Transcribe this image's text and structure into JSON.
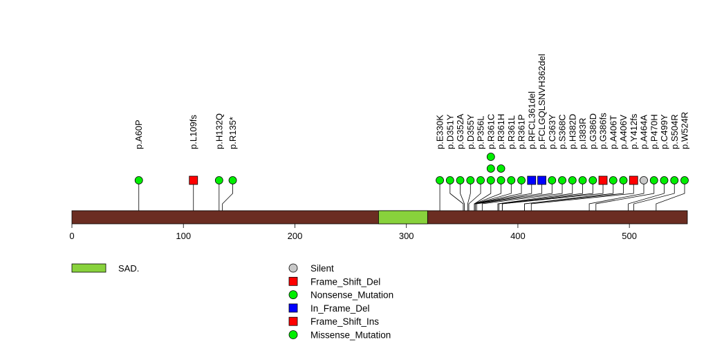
{
  "chart_data": {
    "type": "lollipop",
    "title": "",
    "protein_length": 552,
    "axis": {
      "ticks": [
        0,
        100,
        200,
        300,
        400,
        500
      ],
      "range": [
        0,
        552
      ]
    },
    "domains": [
      {
        "label": "SAD.",
        "start": 275,
        "end": 319,
        "color": "#88d23c"
      }
    ],
    "backbone_color": "#6b2d22",
    "mutations": [
      {
        "label": "p.A60P",
        "pos": 60,
        "types": [
          "Missense_Mutation"
        ]
      },
      {
        "label": "p.L109fs",
        "pos": 109,
        "types": [
          "Frame_Shift_Del"
        ]
      },
      {
        "label": "p.H132Q",
        "pos": 132,
        "types": [
          "Missense_Mutation"
        ]
      },
      {
        "label": "p.R135*",
        "pos": 135,
        "types": [
          "Nonsense_Mutation"
        ]
      },
      {
        "label": "p.E330K",
        "pos": 330,
        "types": [
          "Missense_Mutation"
        ]
      },
      {
        "label": "p.D351Y",
        "pos": 351,
        "types": [
          "Missense_Mutation"
        ]
      },
      {
        "label": "p.G352A",
        "pos": 352,
        "types": [
          "Missense_Mutation"
        ]
      },
      {
        "label": "p.D355Y",
        "pos": 355,
        "types": [
          "Missense_Mutation"
        ]
      },
      {
        "label": "p.P356L",
        "pos": 356,
        "types": [
          "Missense_Mutation"
        ]
      },
      {
        "label": "p.R361C",
        "pos": 361,
        "types": [
          "Missense_Mutation",
          "Missense_Mutation",
          "Missense_Mutation"
        ]
      },
      {
        "label": "p.R361H",
        "pos": 361,
        "types": [
          "Missense_Mutation",
          "Missense_Mutation"
        ]
      },
      {
        "label": "p.R361L",
        "pos": 361,
        "types": [
          "Missense_Mutation"
        ]
      },
      {
        "label": "p.R361P",
        "pos": 361,
        "types": [
          "Missense_Mutation"
        ]
      },
      {
        "label": "p.RFCL361del",
        "pos": 361,
        "types": [
          "In_Frame_Del"
        ]
      },
      {
        "label": "p.FCLGQLSNVH362del",
        "pos": 362,
        "types": [
          "In_Frame_Del"
        ]
      },
      {
        "label": "p.C363Y",
        "pos": 363,
        "types": [
          "Missense_Mutation"
        ]
      },
      {
        "label": "p.S368C",
        "pos": 368,
        "types": [
          "Missense_Mutation"
        ]
      },
      {
        "label": "p.H382D",
        "pos": 382,
        "types": [
          "Missense_Mutation"
        ]
      },
      {
        "label": "p.I383R",
        "pos": 383,
        "types": [
          "Missense_Mutation"
        ]
      },
      {
        "label": "p.G386D",
        "pos": 386,
        "types": [
          "Missense_Mutation"
        ]
      },
      {
        "label": "p.G386fs",
        "pos": 386,
        "types": [
          "Frame_Shift_Del"
        ]
      },
      {
        "label": "p.A406T",
        "pos": 406,
        "types": [
          "Missense_Mutation"
        ]
      },
      {
        "label": "p.A406V",
        "pos": 406,
        "types": [
          "Missense_Mutation"
        ]
      },
      {
        "label": "p.Y412fs",
        "pos": 412,
        "types": [
          "Frame_Shift_Ins"
        ]
      },
      {
        "label": "p.A464A",
        "pos": 464,
        "types": [
          "Silent"
        ]
      },
      {
        "label": "p.P470H",
        "pos": 470,
        "types": [
          "Missense_Mutation"
        ]
      },
      {
        "label": "p.C499Y",
        "pos": 499,
        "types": [
          "Missense_Mutation"
        ]
      },
      {
        "label": "p.S504R",
        "pos": 504,
        "types": [
          "Missense_Mutation"
        ]
      },
      {
        "label": "p.W524R",
        "pos": 524,
        "types": [
          "Missense_Mutation"
        ]
      }
    ],
    "legend_mutation_types": [
      {
        "label": "Silent",
        "color": "#c8c8c8",
        "shape": "circle"
      },
      {
        "label": "Frame_Shift_Del",
        "color": "#ff0000",
        "shape": "square"
      },
      {
        "label": "Nonsense_Mutation",
        "color": "#00ee00",
        "shape": "circle"
      },
      {
        "label": "In_Frame_Del",
        "color": "#0000ff",
        "shape": "square"
      },
      {
        "label": "Frame_Shift_Ins",
        "color": "#ff0000",
        "shape": "square"
      },
      {
        "label": "Missense_Mutation",
        "color": "#00ee00",
        "shape": "circle"
      }
    ]
  }
}
